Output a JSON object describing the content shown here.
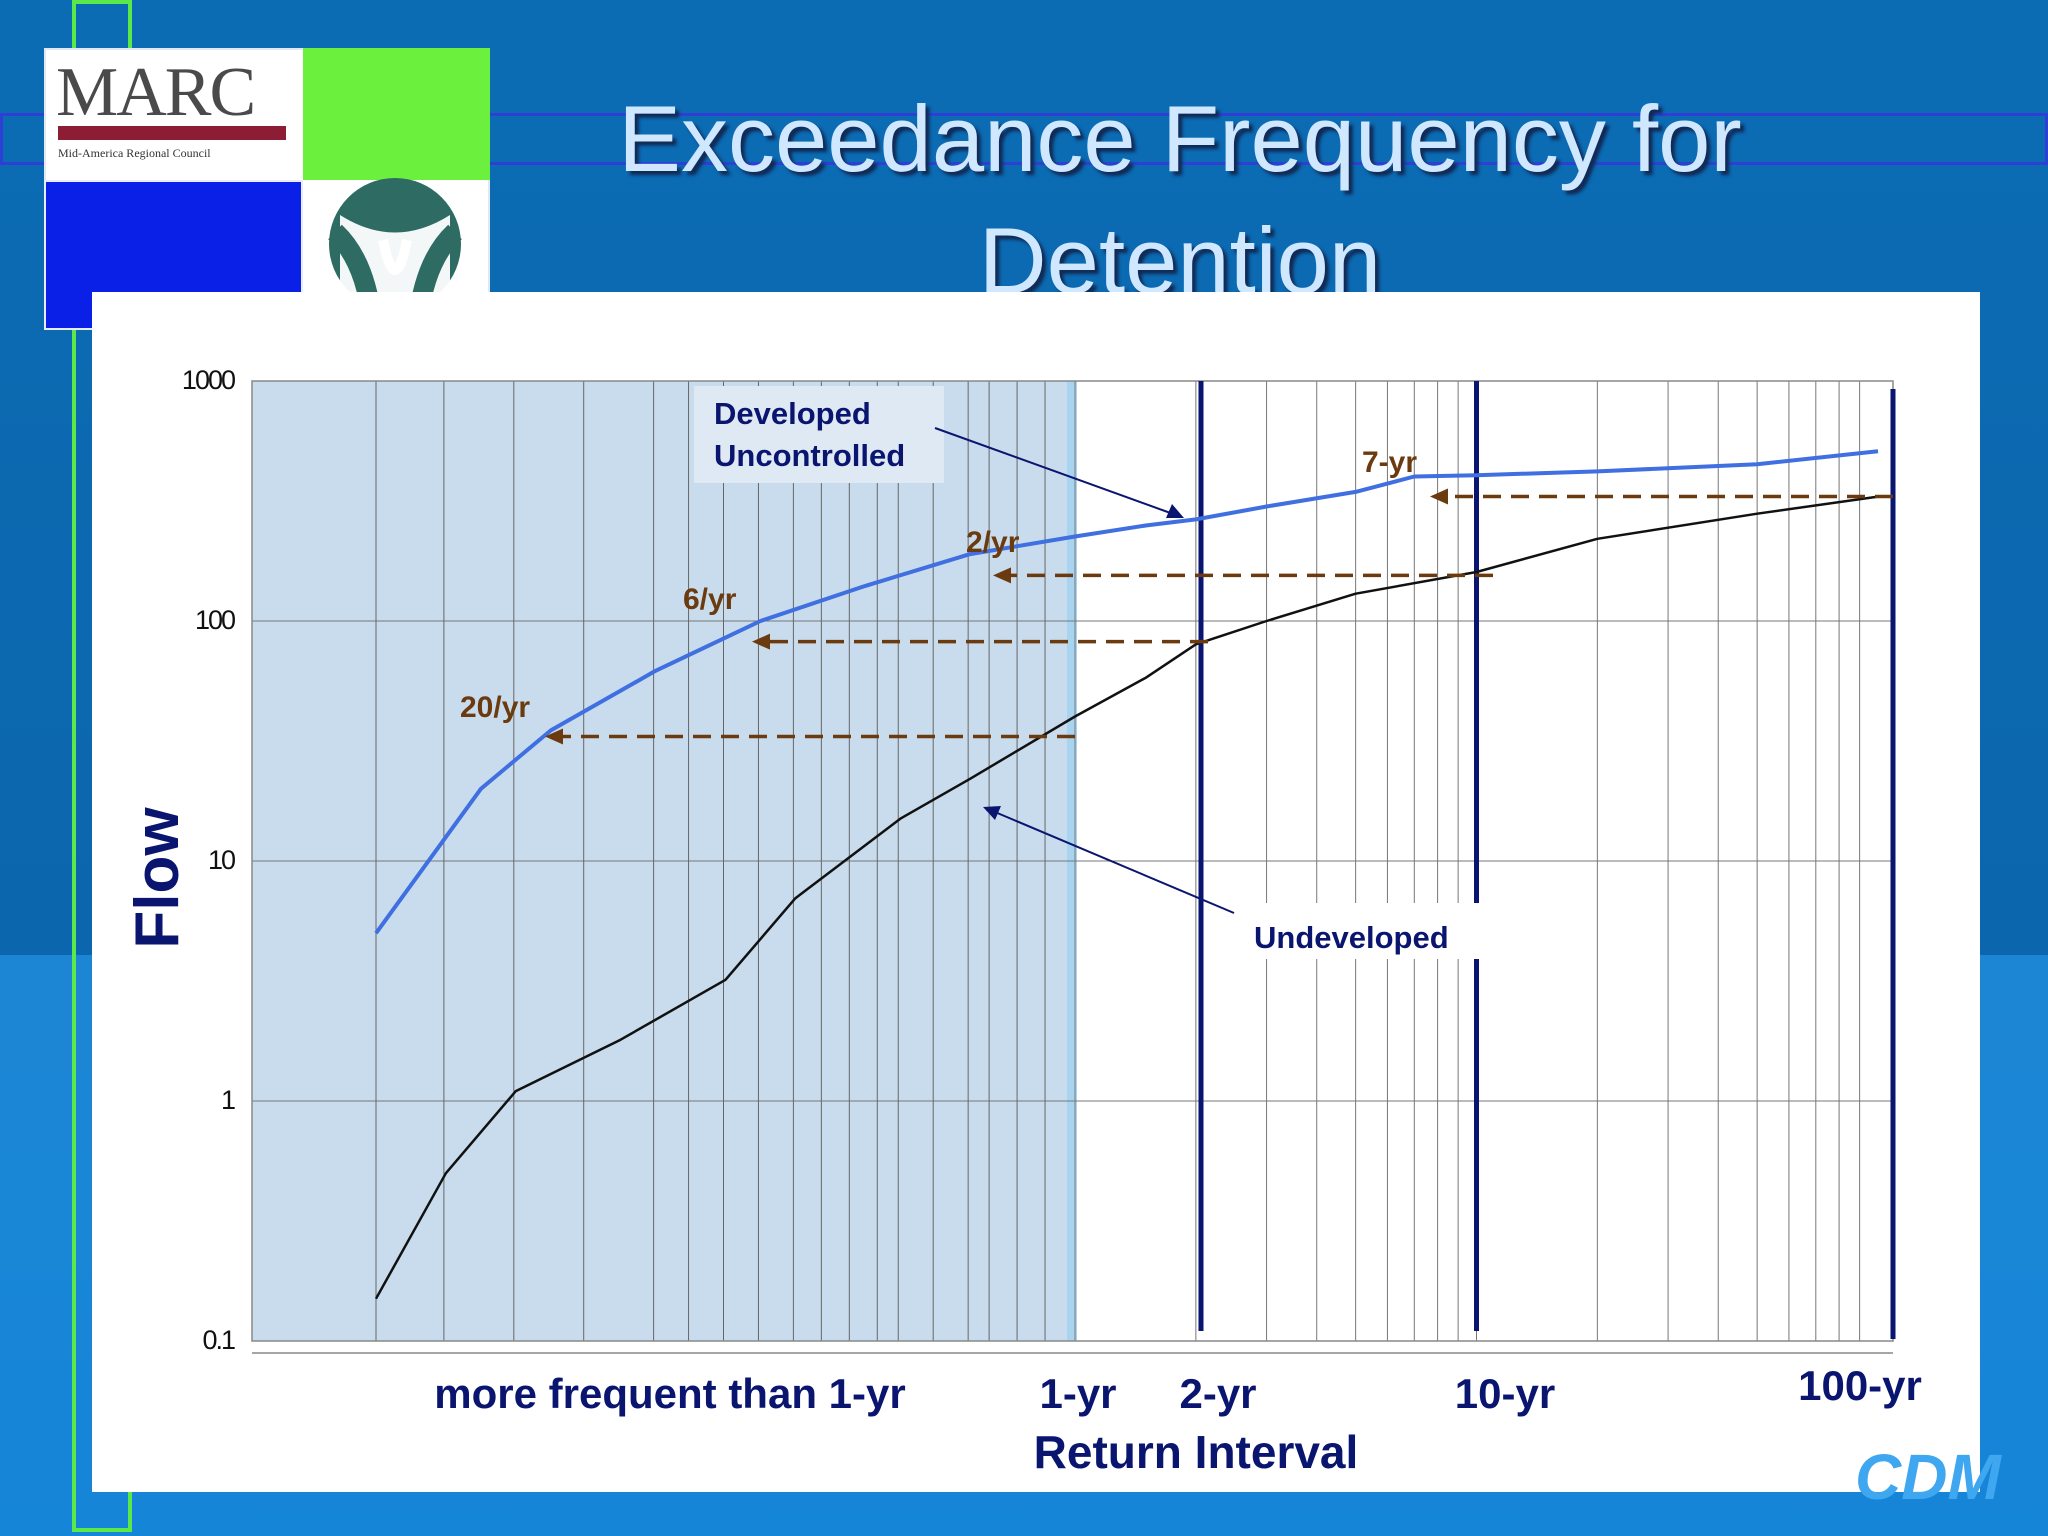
{
  "title": {
    "line1": "Exceedance Frequency for",
    "line2": "Detention"
  },
  "logo": {
    "name": "MARC",
    "subtitle": "Mid-America Regional Council",
    "watermark": "CDM"
  },
  "chart_data": {
    "type": "line",
    "ylabel": "Flow",
    "xlabel": "Return Interval",
    "yscale": "log",
    "ylim": [
      0.1,
      1000
    ],
    "y_ticks": [
      "0.1",
      "1",
      "10",
      "100",
      "1000"
    ],
    "x_region_labels": [
      "more frequent than 1-yr",
      "1-yr",
      "2-yr",
      "10-yr",
      "100-yr"
    ],
    "shaded_region": "more frequent than 1-yr",
    "vertical_markers": [
      "2-yr",
      "10-yr",
      "100-yr"
    ],
    "series": [
      {
        "name": "Developed Uncontrolled",
        "color": "#3f6fe0",
        "points": [
          [
            0,
            5
          ],
          [
            0.15,
            20
          ],
          [
            0.25,
            35
          ],
          [
            0.4,
            62
          ],
          [
            0.55,
            100
          ],
          [
            0.7,
            140
          ],
          [
            0.85,
            190
          ],
          [
            1,
            225
          ],
          [
            1.5,
            250
          ],
          [
            2,
            265
          ],
          [
            3,
            300
          ],
          [
            5,
            345
          ],
          [
            7,
            400
          ],
          [
            10,
            405
          ],
          [
            20,
            420
          ],
          [
            50,
            450
          ],
          [
            100,
            510
          ]
        ]
      },
      {
        "name": "Undeveloped",
        "color": "#111111",
        "points": [
          [
            0,
            0.15
          ],
          [
            0.1,
            0.5
          ],
          [
            0.2,
            1.1
          ],
          [
            0.35,
            1.8
          ],
          [
            0.5,
            3.2
          ],
          [
            0.6,
            7
          ],
          [
            0.75,
            15
          ],
          [
            0.85,
            22
          ],
          [
            1,
            40
          ],
          [
            1.5,
            58
          ],
          [
            2,
            80
          ],
          [
            3,
            100
          ],
          [
            5,
            130
          ],
          [
            10,
            160
          ],
          [
            20,
            220
          ],
          [
            50,
            280
          ],
          [
            100,
            330
          ]
        ]
      }
    ],
    "annotations": [
      {
        "text": "20/yr",
        "flow": 33
      },
      {
        "text": "6/yr",
        "flow": 82
      },
      {
        "text": "2/yr",
        "flow": 155
      },
      {
        "text": "7-yr",
        "flow": 330
      }
    ],
    "grid": true
  }
}
